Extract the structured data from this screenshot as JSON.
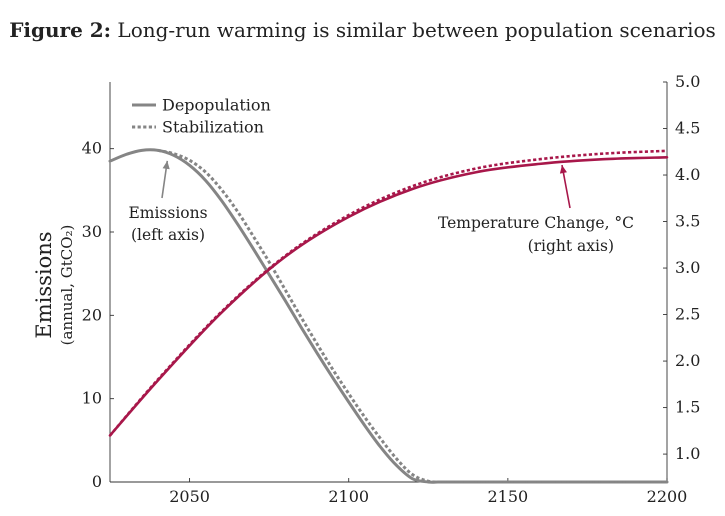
{
  "figure": {
    "label": "Figure 2:",
    "caption": "Long-run warming is similar between population scenarios"
  },
  "chart_data": {
    "type": "line",
    "title": "Long-run warming is similar between population scenarios",
    "xlabel": "",
    "ylabel": "Emissions",
    "ylabel_sub": "(annual, GtCO₂)",
    "xlim": [
      2025,
      2200
    ],
    "ylim_left": [
      0,
      48
    ],
    "ylim_right": [
      0.7,
      5.0
    ],
    "x_ticks": [
      2050,
      2100,
      2150,
      2200
    ],
    "x_tick_labels": [
      "2050",
      "2100",
      "2150",
      "2200"
    ],
    "y_left_ticks": [
      0,
      10,
      20,
      30,
      40
    ],
    "y_left_tick_labels": [
      "0",
      "10",
      "20",
      "30",
      "40"
    ],
    "y_right_ticks": [
      1.0,
      1.5,
      2.0,
      2.5,
      3.0,
      3.5,
      4.0,
      4.5,
      5.0
    ],
    "y_right_tick_labels": [
      "1.0",
      "1.5",
      "2.0",
      "2.5",
      "3.0",
      "3.5",
      "4.0",
      "4.5",
      "5.0"
    ],
    "legend": {
      "placement": "top-left",
      "entries": [
        {
          "label": "Depopulation",
          "style": "solid"
        },
        {
          "label": "Stabilization",
          "style": "dotted"
        }
      ]
    },
    "colors": {
      "emissions": "#858585",
      "temperature": "#a8174a",
      "axis": "#333333"
    },
    "series": [
      {
        "name": "Emissions – Depopulation",
        "axis": "left",
        "style": "solid",
        "x": [
          2025,
          2030,
          2035,
          2040,
          2045,
          2050,
          2055,
          2060,
          2065,
          2070,
          2075,
          2080,
          2085,
          2090,
          2095,
          2100,
          2105,
          2110,
          2115,
          2120,
          2125,
          2128,
          2130,
          2140,
          2150,
          2200
        ],
        "y": [
          38.5,
          39.3,
          39.8,
          39.8,
          39.2,
          38.0,
          36.2,
          33.8,
          31.0,
          28.0,
          24.9,
          21.8,
          18.6,
          15.5,
          12.5,
          9.6,
          6.8,
          4.2,
          2.0,
          0.4,
          0.0,
          0.0,
          0.0,
          0.0,
          0.0,
          0.0
        ]
      },
      {
        "name": "Emissions – Stabilization",
        "axis": "left",
        "style": "dotted",
        "x": [
          2040,
          2045,
          2050,
          2055,
          2060,
          2065,
          2070,
          2075,
          2080,
          2085,
          2090,
          2095,
          2100,
          2105,
          2110,
          2115,
          2120,
          2125,
          2130,
          2140,
          2150,
          2200
        ],
        "y": [
          39.8,
          39.4,
          38.6,
          37.2,
          35.1,
          32.5,
          29.5,
          26.4,
          23.1,
          19.8,
          16.6,
          13.5,
          10.6,
          7.8,
          5.2,
          2.8,
          0.9,
          0.1,
          0.0,
          0.0,
          0.0,
          0.0
        ]
      },
      {
        "name": "Temperature Change – Depopulation",
        "axis": "right",
        "style": "solid",
        "x": [
          2025,
          2040,
          2060,
          2080,
          2100,
          2120,
          2140,
          2160,
          2180,
          2200
        ],
        "y": [
          1.2,
          1.79,
          2.52,
          3.12,
          3.55,
          3.85,
          4.03,
          4.12,
          4.17,
          4.19
        ]
      },
      {
        "name": "Temperature Change – Stabilization",
        "axis": "right",
        "style": "dotted",
        "x": [
          2025,
          2040,
          2060,
          2080,
          2100,
          2120,
          2140,
          2160,
          2180,
          2200
        ],
        "y": [
          1.2,
          1.8,
          2.53,
          3.13,
          3.57,
          3.88,
          4.07,
          4.17,
          4.23,
          4.26
        ]
      }
    ],
    "annotations": [
      {
        "id": "emissions",
        "lines": [
          "Emissions",
          "(left axis)"
        ],
        "target_x": 2043,
        "target_y": 39.5,
        "axis": "left"
      },
      {
        "id": "temperature",
        "lines": [
          "Temperature Change, °C",
          "(right axis)"
        ],
        "target_x": 2167,
        "target_y": 4.15,
        "axis": "right"
      }
    ]
  }
}
